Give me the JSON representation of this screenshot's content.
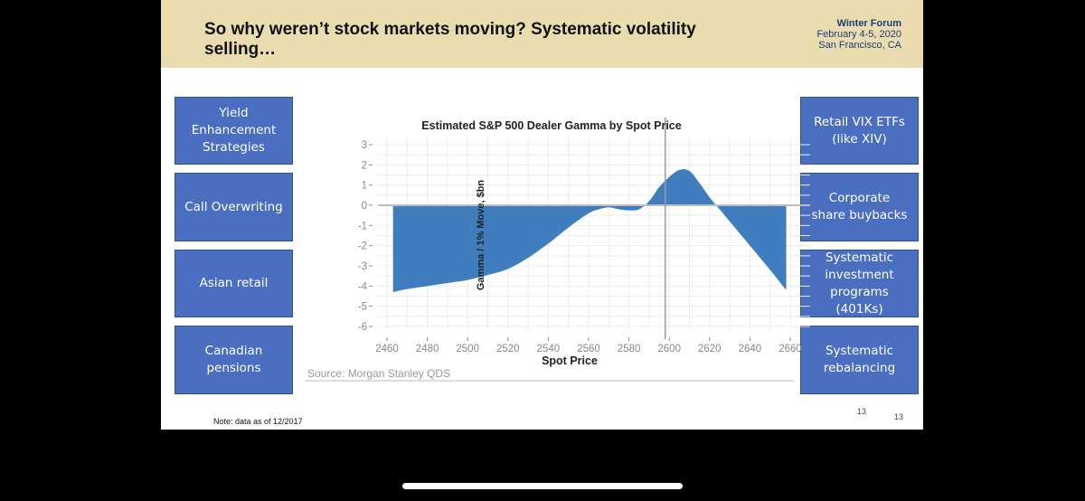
{
  "slide": {
    "title": "So why weren’t stock markets moving?  Systematic volatility selling…",
    "forum": {
      "name": "Winter Forum",
      "dates": "February 4-5, 2020",
      "location": "San Francisco, CA"
    },
    "note": "Note: data as of 12/2017",
    "page_number_1": "13",
    "page_number_2": "13"
  },
  "left_boxes": [
    "Yield Enhancement Strategies",
    "Call Overwriting",
    "Asian retail",
    "Canadian pensions"
  ],
  "right_boxes": [
    "Retail VIX ETFs (like XIV)",
    "Corporate share buybacks",
    "Systematic investment programs (401Ks)",
    "Systematic rebalancing"
  ],
  "colors": {
    "box_fill": "#4a6fc0",
    "area_fill": "#3f7dbf",
    "banner": "#e9ddb0"
  },
  "chart_data": {
    "type": "area",
    "title": "Estimated S&P 500 Dealer Gamma by Spot Price",
    "xlabel": "Spot Price",
    "ylabel": "Gamma / 1% Move, $bn",
    "source": "Source: Morgan Stanley QDS",
    "xlim": [
      2460,
      2660
    ],
    "ylim": [
      -6,
      3
    ],
    "xticks": [
      2460,
      2480,
      2500,
      2520,
      2540,
      2560,
      2580,
      2600,
      2620,
      2640,
      2660
    ],
    "yticks": [
      3,
      2,
      1,
      0,
      -1,
      -2,
      -3,
      -4,
      -5,
      -6
    ],
    "vertical_line_x": 2598,
    "grid": true,
    "x": [
      2463,
      2470,
      2480,
      2490,
      2500,
      2510,
      2520,
      2530,
      2540,
      2550,
      2560,
      2565,
      2570,
      2575,
      2580,
      2585,
      2590,
      2595,
      2600,
      2605,
      2610,
      2615,
      2620,
      2625,
      2630,
      2640,
      2650,
      2658
    ],
    "y": [
      -4.3,
      -4.15,
      -4.0,
      -3.85,
      -3.7,
      -3.45,
      -3.15,
      -2.6,
      -1.9,
      -1.1,
      -0.4,
      -0.2,
      -0.1,
      -0.2,
      -0.25,
      -0.2,
      0.2,
      0.9,
      1.4,
      1.75,
      1.7,
      1.1,
      0.4,
      -0.2,
      -0.8,
      -2.0,
      -3.2,
      -4.2
    ]
  }
}
